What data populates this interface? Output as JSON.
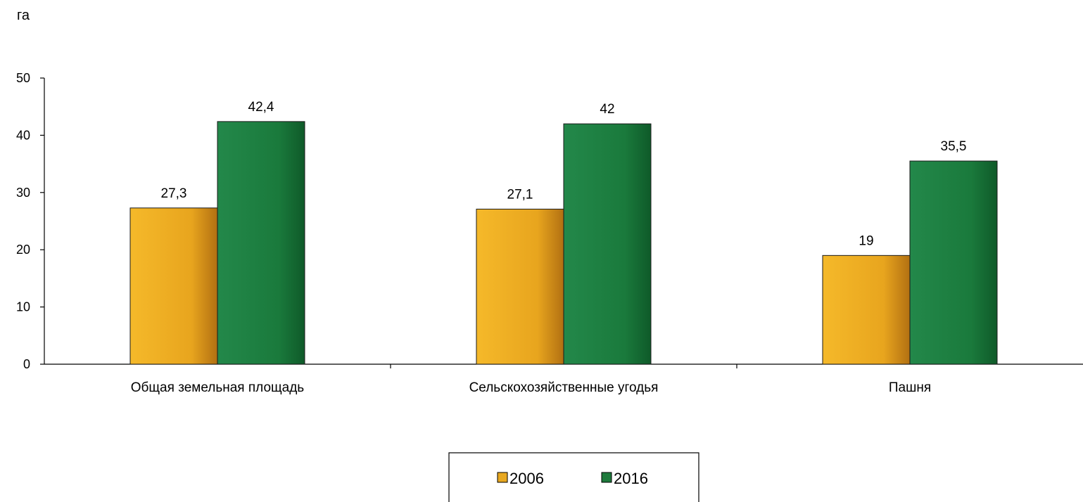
{
  "chart_data": {
    "type": "bar",
    "ylabel": "га",
    "ylim": [
      0,
      50
    ],
    "yticks": [
      0,
      10,
      20,
      30,
      40,
      50
    ],
    "grid": false,
    "legend_placement": "bottom-center",
    "categories": [
      "Общая земельная площадь",
      "Сельскохозяйственные угодья",
      "Пашня"
    ],
    "series": [
      {
        "name": "2006",
        "values": [
          27.3,
          27.1,
          19
        ],
        "labels": [
          "27,3",
          "27,1",
          "19"
        ],
        "color": "#e8a820"
      },
      {
        "name": "2016",
        "values": [
          42.4,
          42,
          35.5
        ],
        "labels": [
          "42,4",
          "42",
          "35,5"
        ],
        "color": "#1e7a3c"
      }
    ]
  }
}
